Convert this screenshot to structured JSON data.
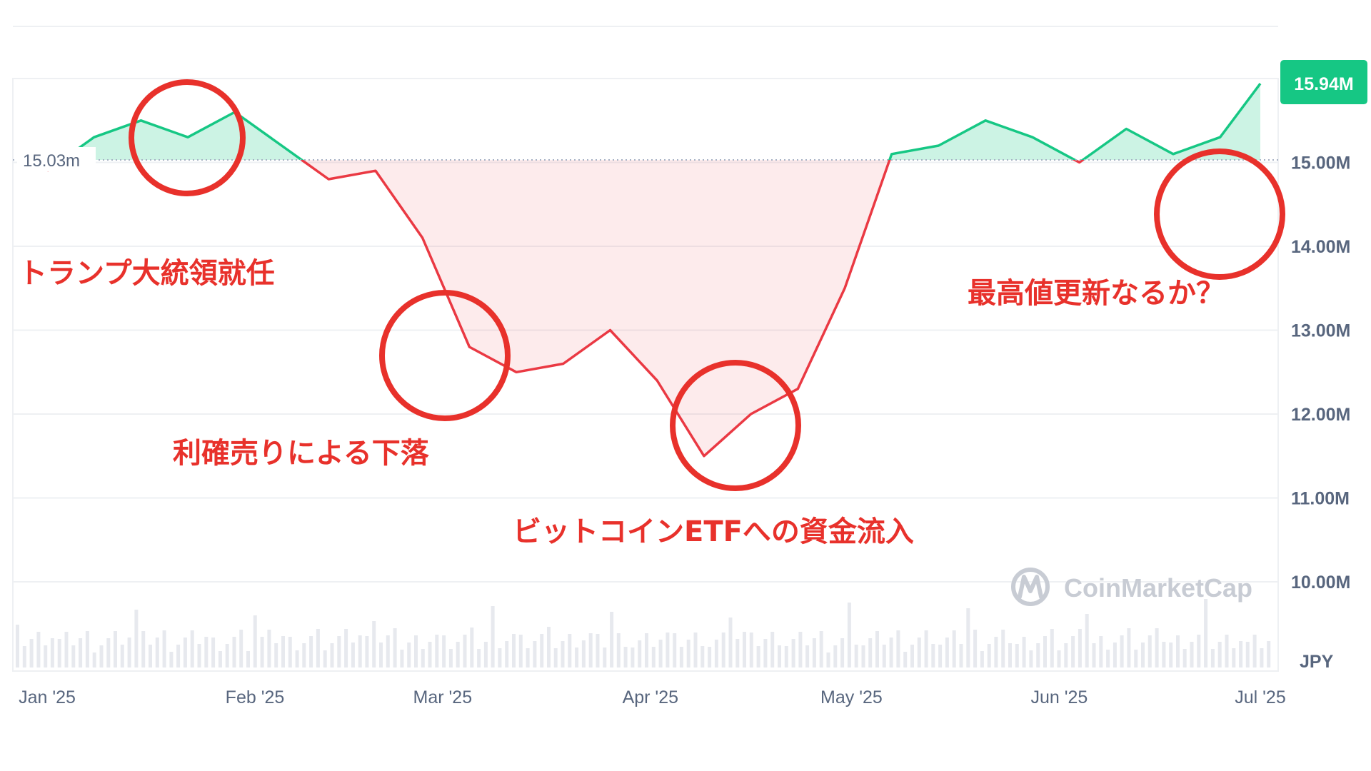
{
  "chart_data": {
    "type": "area",
    "x": [
      "2025-01-01",
      "2025-01-08",
      "2025-01-15",
      "2025-01-22",
      "2025-01-29",
      "2025-02-05",
      "2025-02-12",
      "2025-02-19",
      "2025-02-26",
      "2025-03-05",
      "2025-03-12",
      "2025-03-19",
      "2025-03-26",
      "2025-04-02",
      "2025-04-09",
      "2025-04-16",
      "2025-04-23",
      "2025-04-30",
      "2025-05-07",
      "2025-05-14",
      "2025-05-21",
      "2025-05-28",
      "2025-06-04",
      "2025-06-11",
      "2025-06-18",
      "2025-06-25",
      "2025-07-01"
    ],
    "series": [
      {
        "values": [
          14.9,
          15.3,
          15.5,
          15.3,
          15.6,
          15.2,
          14.8,
          14.9,
          14.1,
          12.8,
          12.5,
          12.6,
          13.0,
          12.4,
          11.5,
          12.0,
          12.3,
          13.5,
          15.1,
          15.2,
          15.5,
          15.3,
          15.0,
          15.4,
          15.1,
          15.3,
          15.94
        ]
      }
    ],
    "baseline": 15.03,
    "baseline_label": "15.03m",
    "current_label": "15.94M",
    "x_tick_labels": [
      "Jan '25",
      "Feb '25",
      "Mar '25",
      "Apr '25",
      "May '25",
      "Jun '25",
      "Jul '25"
    ],
    "y_tick_labels": [
      "10.00M",
      "11.00M",
      "12.00M",
      "13.00M",
      "14.00M",
      "15.00M"
    ],
    "y_ticks": [
      10,
      11,
      12,
      13,
      14,
      15
    ],
    "ylim": [
      10,
      16.0
    ],
    "unit_label": "JPY",
    "colors": {
      "up": "#16c784",
      "down": "#ea3943",
      "annotation": "#e8312b",
      "grid": "#eef0f3"
    },
    "annotations": [
      {
        "label": "トランプ大統領就任"
      },
      {
        "label": "利確売りによる下落"
      },
      {
        "label": "ビットコインETFへの資金流入"
      },
      {
        "label": "最高値更新なるか？"
      }
    ]
  },
  "watermark": {
    "text": "CoinMarketCap",
    "icon": "coinmarketcap-logo"
  }
}
